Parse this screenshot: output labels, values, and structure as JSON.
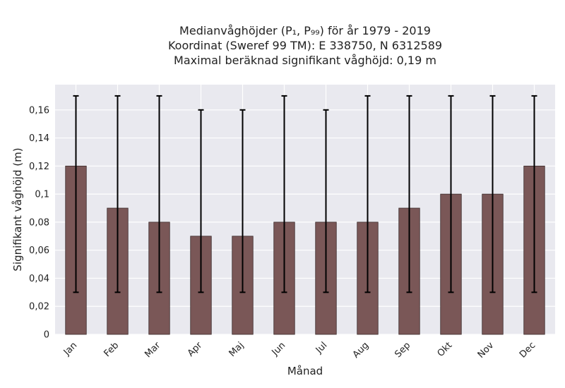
{
  "chart_data": {
    "type": "bar",
    "title_lines": [
      "Medianvåghöjder (P₁, P₉₉) för år 1979 - 2019",
      "Koordinat (Sweref 99 TM): E 338750, N 6312589",
      "Maximal beräknad signifikant våghöjd: 0,19 m"
    ],
    "xlabel": "Månad",
    "ylabel": "Signifikant våghöjd (m)",
    "categories": [
      "Jan",
      "Feb",
      "Mar",
      "Apr",
      "Maj",
      "Jun",
      "Jul",
      "Aug",
      "Sep",
      "Okt",
      "Nov",
      "Dec"
    ],
    "values": [
      0.12,
      0.09,
      0.08,
      0.07,
      0.07,
      0.08,
      0.08,
      0.08,
      0.09,
      0.1,
      0.1,
      0.12
    ],
    "error_low": [
      0.03,
      0.03,
      0.03,
      0.03,
      0.03,
      0.03,
      0.03,
      0.03,
      0.03,
      0.03,
      0.03,
      0.03
    ],
    "error_high": [
      0.17,
      0.17,
      0.17,
      0.16,
      0.16,
      0.17,
      0.16,
      0.17,
      0.17,
      0.17,
      0.17,
      0.17
    ],
    "ylim": [
      0,
      0.178
    ],
    "yticks": [
      0,
      0.02,
      0.04,
      0.06,
      0.08,
      0.1,
      0.12,
      0.14,
      0.16
    ],
    "ytick_labels": [
      "0",
      "0,02",
      "0,04",
      "0,06",
      "0,08",
      "0,1",
      "0,12",
      "0,14",
      "0,16"
    ],
    "grid": true,
    "colors": {
      "bar": "#7a5757",
      "bar_edge": "#3a2a2a",
      "error": "#000000",
      "plot_background": "#e9e9ef",
      "grid": "#ffffff"
    }
  }
}
